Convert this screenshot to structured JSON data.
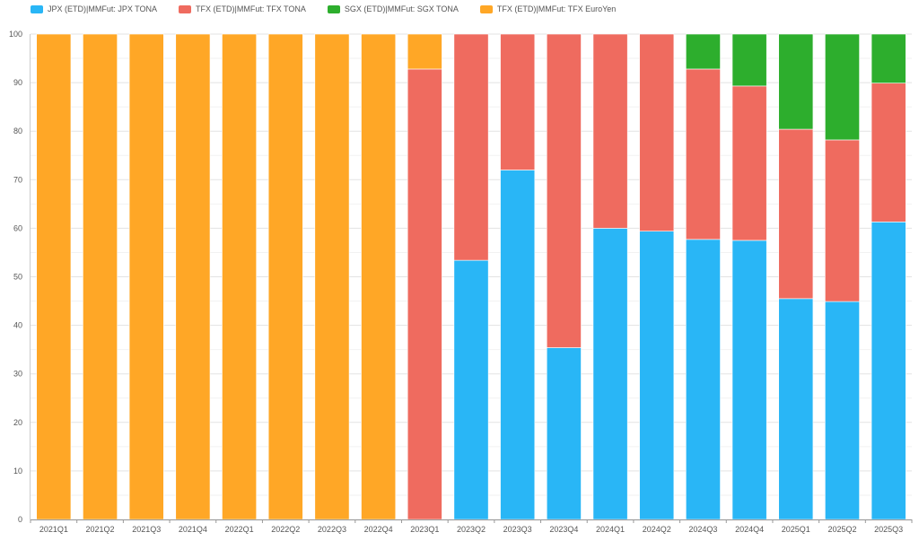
{
  "chart_data": {
    "type": "bar",
    "stacked": true,
    "categories": [
      "2021Q1",
      "2021Q2",
      "2021Q3",
      "2021Q4",
      "2022Q1",
      "2022Q2",
      "2022Q3",
      "2022Q4",
      "2023Q1",
      "2023Q2",
      "2023Q3",
      "2023Q4",
      "2024Q1",
      "2024Q2",
      "2024Q3",
      "2024Q4",
      "2025Q1",
      "2025Q2",
      "2025Q3"
    ],
    "series": [
      {
        "name": "JPX (ETD)|MMFut: JPX TONA",
        "color": "#29B6F6",
        "values": [
          0,
          0,
          0,
          0,
          0,
          0,
          0,
          0,
          0,
          53.4,
          72,
          35.4,
          60,
          59.4,
          57.7,
          57.5,
          45.5,
          44.9,
          61.3
        ]
      },
      {
        "name": "TFX (ETD)|MMFut: TFX TONA",
        "color": "#EF6B5F",
        "values": [
          0,
          0,
          0,
          0,
          0,
          0,
          0,
          0,
          92.8,
          46.6,
          28,
          64.6,
          40,
          40.6,
          35.1,
          31.8,
          34.9,
          33.3,
          28.6
        ]
      },
      {
        "name": "SGX (ETD)|MMFut: SGX TONA",
        "color": "#2DAE2D",
        "values": [
          0,
          0,
          0,
          0,
          0,
          0,
          0,
          0,
          0,
          0,
          0,
          0,
          0,
          0,
          7.2,
          10.7,
          19.6,
          21.8,
          10.1
        ]
      },
      {
        "name": "TFX (ETD)|MMFut: TFX EuroYen",
        "color": "#FFA726",
        "values": [
          100,
          100,
          100,
          100,
          100,
          100,
          100,
          100,
          7.2,
          0,
          0,
          0,
          0,
          0,
          0,
          0,
          0,
          0,
          0
        ]
      }
    ],
    "ylim": [
      0,
      100
    ],
    "yticks": [
      0,
      10,
      20,
      30,
      40,
      50,
      60,
      70,
      80,
      90,
      100
    ],
    "title": "",
    "xlabel": "",
    "ylabel": "",
    "legend_position": "top-left",
    "grid": true
  }
}
